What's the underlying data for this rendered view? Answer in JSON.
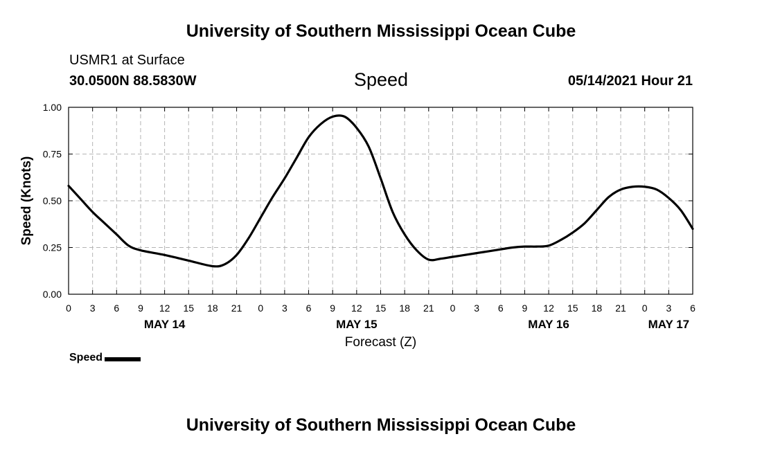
{
  "header": {
    "title_top": "University of Southern Mississippi Ocean Cube",
    "title_bottom": "University of Southern Mississippi Ocean Cube",
    "station_name": "USMR1 at Surface",
    "station_coords": "30.0500N  88.5830W",
    "chart_title": "Speed",
    "timestamp": "05/14/2021 Hour 21"
  },
  "legend": {
    "label": "Speed"
  },
  "colors": {
    "line": "#000000",
    "grid": "#b4b4b4",
    "axis": "#000000"
  },
  "chart_data": {
    "type": "line",
    "title": "Speed",
    "xlabel": "Forecast (Z)",
    "ylabel": "Speed (Knots)",
    "xlim": [
      0,
      78
    ],
    "ylim": [
      0,
      1
    ],
    "grid": true,
    "legend_position": "bottom-left",
    "x_ticks": [
      0,
      3,
      6,
      9,
      12,
      15,
      18,
      21,
      24,
      27,
      30,
      33,
      36,
      39,
      42,
      45,
      48,
      51,
      54,
      57,
      60,
      63,
      66,
      69,
      72,
      75,
      78
    ],
    "x_tick_labels": [
      "0",
      "3",
      "6",
      "9",
      "12",
      "15",
      "18",
      "21",
      "0",
      "3",
      "6",
      "9",
      "12",
      "15",
      "18",
      "21",
      "0",
      "3",
      "6",
      "9",
      "12",
      "15",
      "18",
      "21",
      "0",
      "3",
      "6"
    ],
    "day_labels": [
      {
        "x": 12,
        "label": "MAY 14"
      },
      {
        "x": 36,
        "label": "MAY 15"
      },
      {
        "x": 60,
        "label": "MAY 16"
      },
      {
        "x": 75,
        "label": "MAY 17"
      }
    ],
    "y_ticks": [
      0,
      0.25,
      0.5,
      0.75,
      1.0
    ],
    "y_tick_labels": [
      "0.00",
      "0.25",
      "0.50",
      "0.75",
      "1.00"
    ],
    "series": [
      {
        "name": "Speed",
        "x": [
          0,
          1.5,
          3,
          4.5,
          6,
          7.5,
          9,
          12,
          15,
          18,
          19.5,
          21,
          22.5,
          24,
          25.5,
          27,
          28.5,
          30,
          31.5,
          33,
          34.5,
          36,
          37.5,
          39,
          40.5,
          42,
          43.5,
          45,
          46.5,
          48,
          49.5,
          51,
          52.5,
          54,
          55.5,
          57,
          58.5,
          60,
          61.5,
          63,
          64.5,
          66,
          67.5,
          69,
          70.5,
          72,
          73.5,
          75,
          76.5,
          78
        ],
        "values": [
          0.58,
          0.51,
          0.44,
          0.38,
          0.32,
          0.26,
          0.235,
          0.21,
          0.18,
          0.15,
          0.16,
          0.21,
          0.3,
          0.41,
          0.52,
          0.62,
          0.73,
          0.84,
          0.91,
          0.95,
          0.95,
          0.89,
          0.79,
          0.62,
          0.44,
          0.32,
          0.235,
          0.185,
          0.19,
          0.2,
          0.21,
          0.22,
          0.23,
          0.24,
          0.25,
          0.255,
          0.255,
          0.26,
          0.29,
          0.33,
          0.38,
          0.45,
          0.52,
          0.56,
          0.575,
          0.575,
          0.56,
          0.515,
          0.45,
          0.35
        ]
      }
    ]
  }
}
